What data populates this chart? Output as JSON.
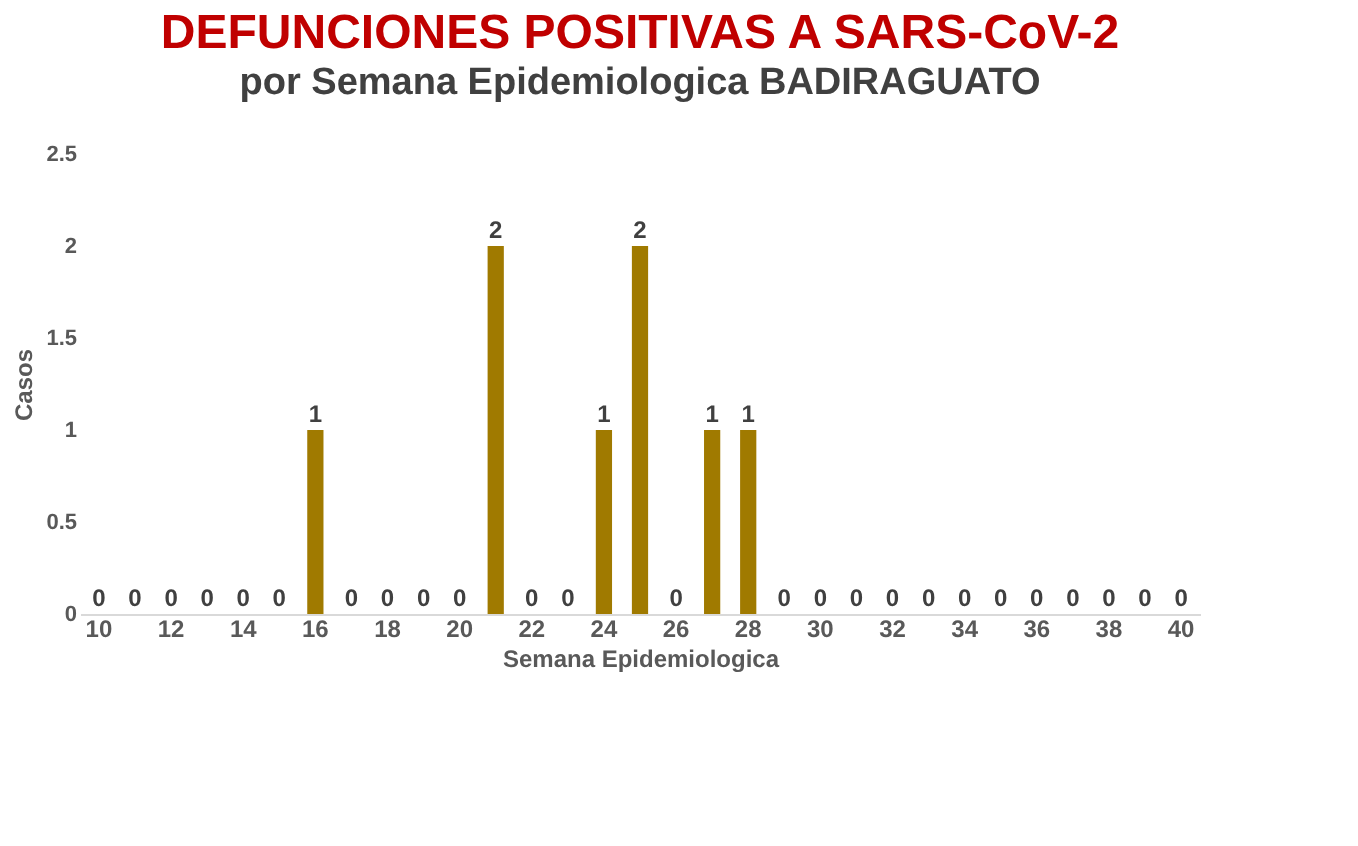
{
  "chart_data": {
    "type": "bar",
    "title": "DEFUNCIONES POSITIVAS A SARS-CoV-2",
    "subtitle": "por Semana Epidemiologica  BADIRAGUATO",
    "xlabel": "Semana Epidemiologica",
    "ylabel": "Casos",
    "categories": [
      "10",
      null,
      "12",
      null,
      "14",
      null,
      "16",
      null,
      "18",
      null,
      "20",
      null,
      "22",
      null,
      "24",
      null,
      "26",
      null,
      "28",
      null,
      "30",
      null,
      "32",
      null,
      "34",
      null,
      "36",
      null,
      "38",
      null,
      "40"
    ],
    "values": [
      0,
      0,
      0,
      0,
      0,
      0,
      1,
      0,
      0,
      0,
      0,
      2,
      0,
      0,
      1,
      2,
      0,
      1,
      1,
      0,
      0,
      0,
      0,
      0,
      0,
      0,
      0,
      0,
      0,
      0,
      0
    ],
    "color": "#a07a00",
    "ylim": [
      0,
      2.5
    ],
    "yticks": [
      0,
      0.5,
      1,
      1.5,
      2,
      2.5
    ],
    "grid": false,
    "data_labels": true
  }
}
